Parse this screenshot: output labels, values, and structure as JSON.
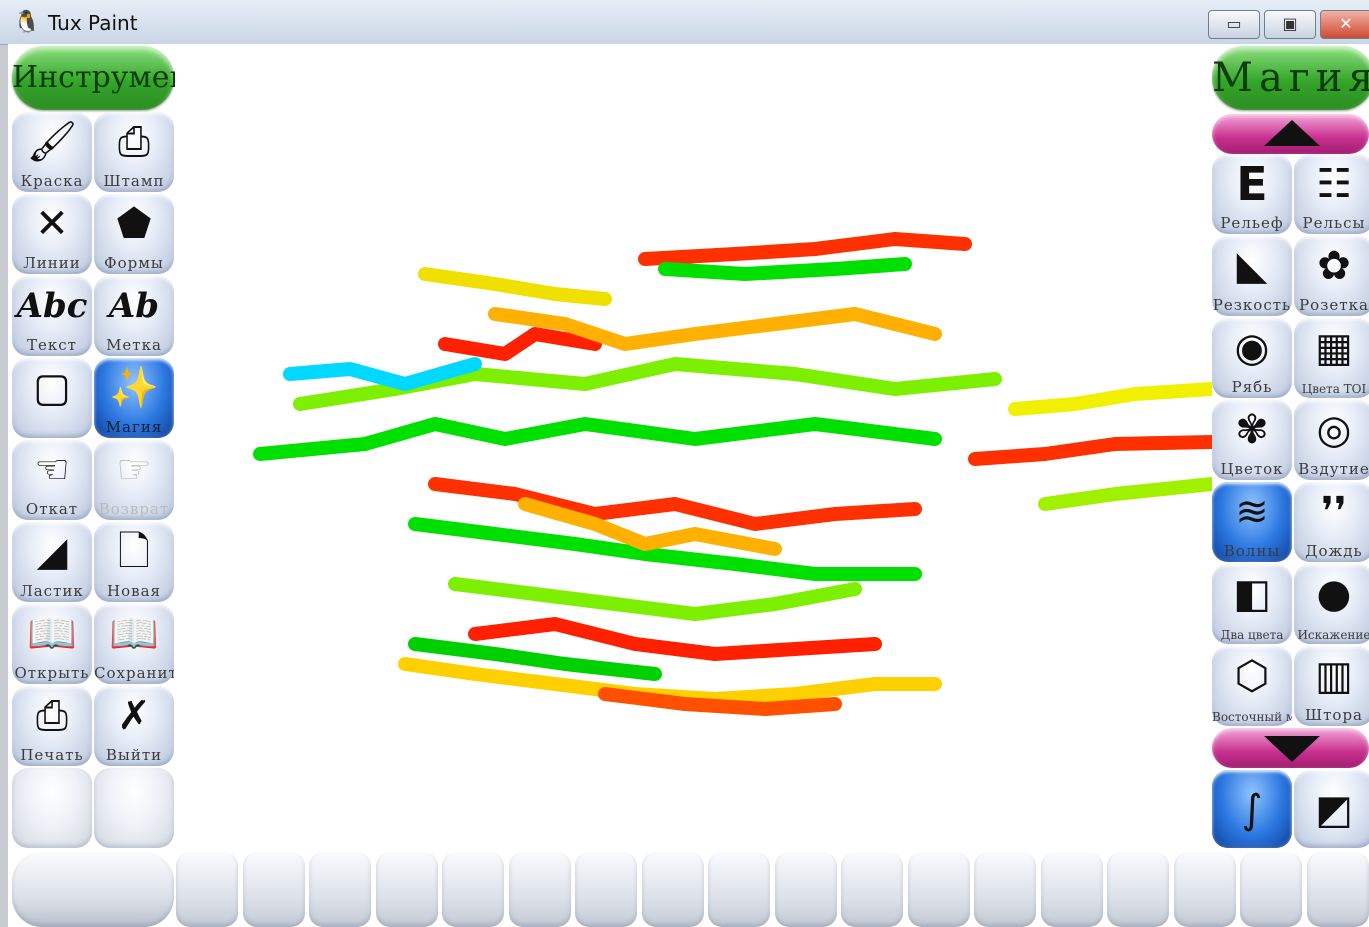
{
  "window": {
    "title": "Tux Paint",
    "minimize_glyph": "▭",
    "maximize_glyph": "▣",
    "close_glyph": "✕"
  },
  "tools": {
    "header": "Инструменты",
    "items": [
      {
        "label": "Краска",
        "icon": "paintbrush-icon",
        "glyph": "🖌"
      },
      {
        "label": "Штамп",
        "icon": "stamp-icon",
        "glyph": "⎙"
      },
      {
        "label": "Линии",
        "icon": "lines-icon",
        "glyph": "✕"
      },
      {
        "label": "Формы",
        "icon": "shapes-icon",
        "glyph": "⬟"
      },
      {
        "label": "Текст",
        "icon": "text-icon",
        "glyph": "Abc"
      },
      {
        "label": "Метка",
        "icon": "label-icon",
        "glyph": "Ab"
      },
      {
        "label": "",
        "icon": "fill-icon",
        "glyph": "▢"
      },
      {
        "label": "Магия",
        "icon": "magic-wand-icon",
        "glyph": "✨"
      },
      {
        "label": "Откат",
        "icon": "undo-icon",
        "glyph": "☜"
      },
      {
        "label": "Возврат",
        "icon": "redo-icon",
        "glyph": "☞"
      },
      {
        "label": "Ластик",
        "icon": "eraser-icon",
        "glyph": "◢"
      },
      {
        "label": "Новая",
        "icon": "new-icon",
        "glyph": "🗋"
      },
      {
        "label": "Открыть",
        "icon": "open-icon",
        "glyph": "📖"
      },
      {
        "label": "Сохранить",
        "icon": "save-icon",
        "glyph": "📖"
      },
      {
        "label": "Печать",
        "icon": "print-icon",
        "glyph": "⎙"
      },
      {
        "label": "Выйти",
        "icon": "quit-icon",
        "glyph": "✗"
      }
    ]
  },
  "magic": {
    "header": "Магия",
    "items": [
      {
        "label": "Рельеф",
        "icon": "emboss-icon",
        "glyph": "E"
      },
      {
        "label": "Рельсы",
        "icon": "rails-icon",
        "glyph": "☷"
      },
      {
        "label": "Резкость",
        "icon": "sharpen-icon",
        "glyph": "◣"
      },
      {
        "label": "Розетка",
        "icon": "rosette-icon",
        "glyph": "✿"
      },
      {
        "label": "Рябь",
        "icon": "ripple-icon",
        "glyph": "◉"
      },
      {
        "label": "Цвета TOI",
        "icon": "colors-icon",
        "glyph": "▦"
      },
      {
        "label": "Цветок",
        "icon": "flower-icon",
        "glyph": "✾"
      },
      {
        "label": "Вздутие",
        "icon": "fisheye-icon",
        "glyph": "◎"
      },
      {
        "label": "Волны",
        "icon": "waves-icon",
        "glyph": "≋"
      },
      {
        "label": "Дождь",
        "icon": "rain-icon",
        "glyph": "❜❜"
      },
      {
        "label": "Два цвета",
        "icon": "two-tone-icon",
        "glyph": "◧"
      },
      {
        "label": "Искажение",
        "icon": "distortion-icon",
        "glyph": "●"
      },
      {
        "label": "Восточный мозаики",
        "icon": "hex-mosaic-icon",
        "glyph": "⬡"
      },
      {
        "label": "Штора",
        "icon": "curtain-icon",
        "glyph": "▥"
      }
    ],
    "modes": [
      {
        "icon": "paint-mode-icon",
        "glyph": "∫"
      },
      {
        "icon": "fullscreen-mode-icon",
        "glyph": "◩"
      }
    ]
  },
  "canvas": {
    "background": "#ffffff"
  },
  "colors": {
    "accent_green": "#34a52a",
    "selected_blue": "#2b77e0",
    "scroll_pink": "#c8308f"
  }
}
